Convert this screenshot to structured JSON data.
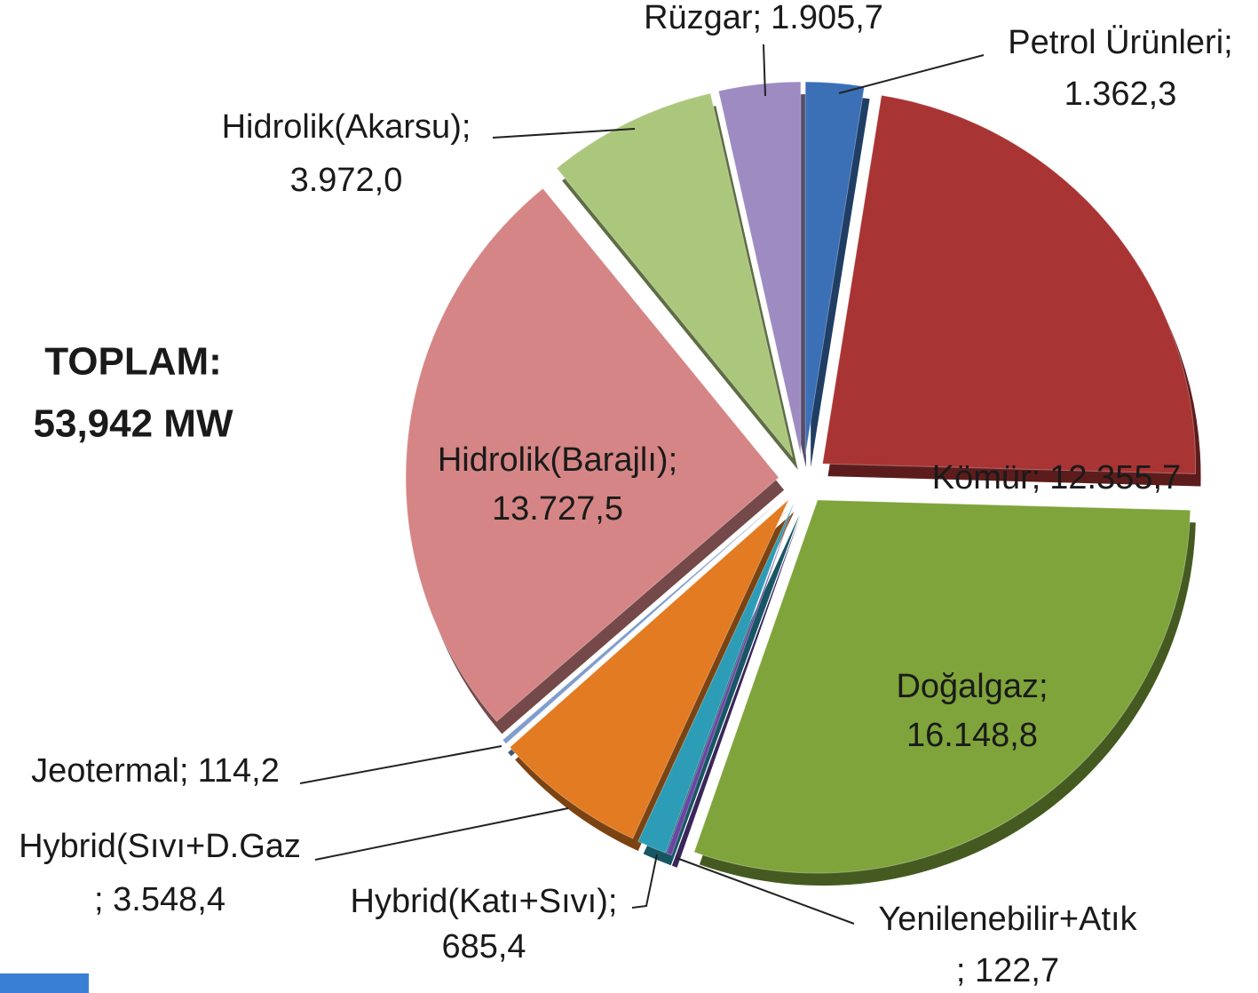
{
  "chart_data": {
    "type": "pie",
    "annotation": [
      "TOPLAM:",
      "53,942 MW"
    ],
    "categories": [
      "Petrol Ürünleri;",
      "Kömür;",
      "Doğalgaz;",
      "Yenilenebilir+Atık",
      "Hybrid(Katı+Sıvı);",
      "Hybrid(Sıvı+D.Gaz",
      "Jeotermal;",
      "Hidrolik(Barajlı);",
      "Hidrolik(Akarsu);",
      "Rüzgar;"
    ],
    "values": [
      1362.3,
      12355.7,
      16148.8,
      122.7,
      685.4,
      3548.4,
      114.2,
      13727.5,
      3972.0,
      1905.7
    ],
    "value_labels": [
      "1.362,3",
      "12.355,7",
      "16.148,8",
      "; 122,7",
      "685,4",
      "; 3.548,4",
      "114,2",
      "13.727,5",
      "3.972,0",
      "1.905,7"
    ],
    "colors": [
      "#3b6fb6",
      "#a93434",
      "#7fa43b",
      "#6b45a3",
      "#2d9db7",
      "#e27b22",
      "#7f9dcc",
      "#d58585",
      "#abc77c",
      "#9d8bc2"
    ]
  }
}
